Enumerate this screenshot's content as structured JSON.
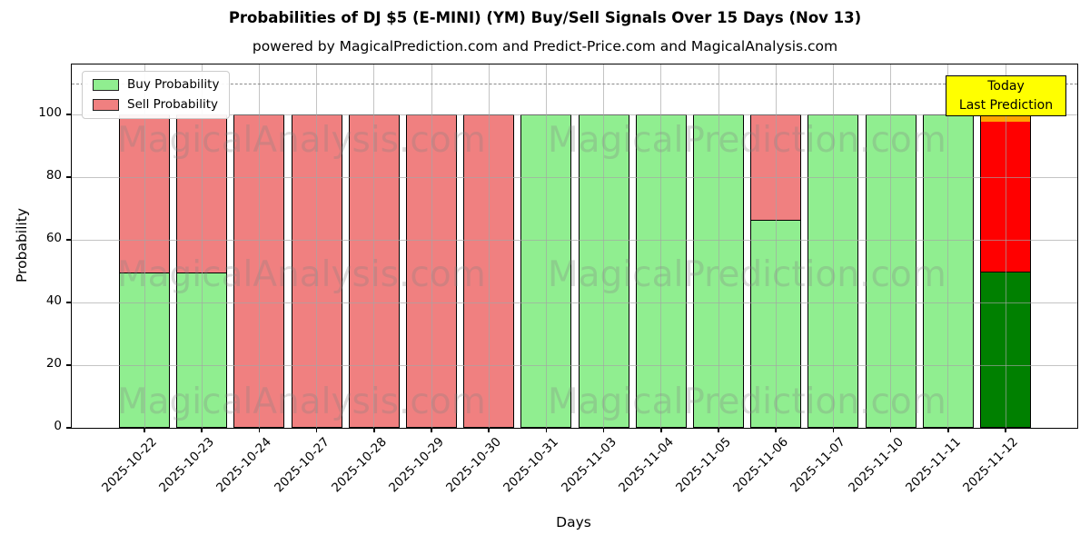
{
  "header": {
    "title": "Probabilities of DJ $5 (E-MINI) (YM) Buy/Sell Signals Over 15 Days (Nov 13)",
    "subtitle": "powered by MagicalPrediction.com and Predict-Price.com and MagicalAnalysis.com"
  },
  "axes": {
    "xlabel": "Days",
    "ylabel": "Probability",
    "yticks": [
      0,
      20,
      40,
      60,
      80,
      100
    ]
  },
  "legend": {
    "items": [
      {
        "label": "Buy Probability",
        "color": "#90EE90"
      },
      {
        "label": "Sell Probability",
        "color": "#F08080"
      }
    ]
  },
  "annotation": {
    "line1": "Today",
    "line2": "Last Prediction",
    "bg": "#FFFF00"
  },
  "watermarks": {
    "left": "MagicalAnalysis.com",
    "right": "MagicalPrediction.com"
  },
  "chart_data": {
    "type": "bar",
    "stacked": true,
    "title": "Probabilities of DJ $5 (E-MINI) (YM) Buy/Sell Signals Over 15 Days (Nov 13)",
    "xlabel": "Days",
    "ylabel": "Probability",
    "ylim": [
      0,
      116
    ],
    "grid": true,
    "legend_position": "upper left",
    "dashed_line_y": 110,
    "categories": [
      "2025-10-22",
      "2025-10-23",
      "2025-10-24",
      "2025-10-27",
      "2025-10-28",
      "2025-10-29",
      "2025-10-30",
      "2025-10-31",
      "2025-11-03",
      "2025-11-04",
      "2025-11-05",
      "2025-11-06",
      "2025-11-07",
      "2025-11-10",
      "2025-11-11",
      "2025-11-12"
    ],
    "series": [
      {
        "name": "Buy Probability",
        "color": "#90EE90",
        "values": [
          50,
          50,
          0,
          0,
          0,
          0,
          0,
          100,
          100,
          100,
          100,
          66.7,
          100,
          100,
          100,
          50
        ]
      },
      {
        "name": "Sell Probability",
        "color": "#F08080",
        "values": [
          50,
          50,
          100,
          100,
          100,
          100,
          100,
          0,
          0,
          0,
          0,
          33.3,
          0,
          0,
          0,
          50
        ]
      }
    ],
    "today": {
      "index": 15,
      "date": "2025-11-12",
      "buy_color": "#008000",
      "sell_color": "#FF0000",
      "cap_color": "#FFA500",
      "cap_value": 2
    }
  }
}
